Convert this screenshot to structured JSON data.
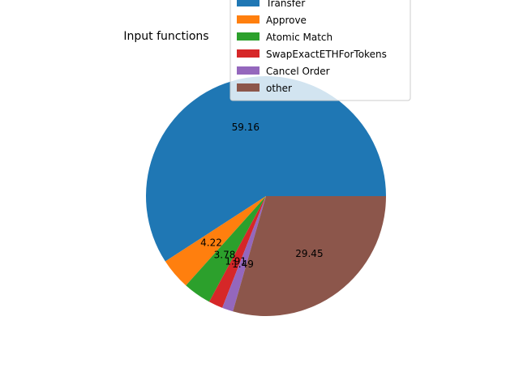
{
  "chart_data": {
    "type": "pie",
    "title": "Input functions",
    "slices": [
      {
        "label": "Transfer",
        "value": 59.16,
        "color": "#1f77b4",
        "value_label": "59.16"
      },
      {
        "label": "Approve",
        "value": 4.22,
        "color": "#ff7f0e",
        "value_label": "4.22"
      },
      {
        "label": "Atomic Match",
        "value": 3.78,
        "color": "#2ca02c",
        "value_label": "3.78"
      },
      {
        "label": "SwapExactETHForTokens",
        "value": 1.91,
        "color": "#d62728",
        "value_label": "1.91"
      },
      {
        "label": "Cancel Order",
        "value": 1.49,
        "color": "#9467bd",
        "value_label": "1.49"
      },
      {
        "label": "other",
        "value": 29.45,
        "color": "#8c564b",
        "value_label": "29.45"
      }
    ],
    "start_angle_deg": 0,
    "direction": "counterclockwise",
    "legend_position": "top-right"
  }
}
